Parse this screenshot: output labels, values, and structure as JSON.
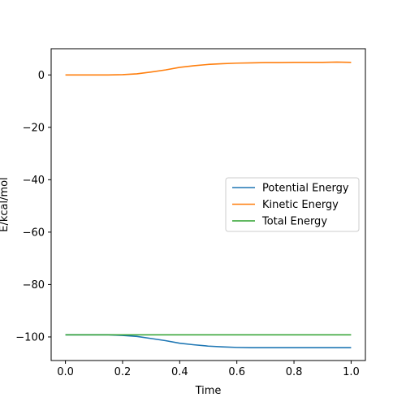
{
  "chart_data": {
    "type": "line",
    "title": "",
    "xlabel": "Time",
    "ylabel": "E/kcal/mol",
    "xlim": [
      -0.05,
      1.05
    ],
    "ylim": [
      -109,
      10
    ],
    "xticks": [
      0.0,
      0.2,
      0.4,
      0.6,
      0.8,
      1.0
    ],
    "xtick_labels": [
      "0.0",
      "0.2",
      "0.4",
      "0.6",
      "0.8",
      "1.0"
    ],
    "yticks": [
      0,
      -20,
      -40,
      -60,
      -80,
      -100
    ],
    "ytick_labels": [
      "0",
      "−20",
      "−40",
      "−60",
      "−80",
      "−100"
    ],
    "grid": false,
    "legend_position": "center-right",
    "series": [
      {
        "name": "Potential Energy",
        "color": "#1f77b4",
        "x": [
          0.0,
          0.05,
          0.1,
          0.15,
          0.2,
          0.25,
          0.3,
          0.35,
          0.4,
          0.45,
          0.5,
          0.55,
          0.6,
          0.65,
          0.7,
          0.75,
          0.8,
          0.85,
          0.9,
          0.95,
          1.0
        ],
        "y": [
          -99.2,
          -99.2,
          -99.2,
          -99.2,
          -99.4,
          -99.8,
          -100.6,
          -101.4,
          -102.4,
          -103.0,
          -103.5,
          -103.8,
          -104.0,
          -104.1,
          -104.1,
          -104.1,
          -104.1,
          -104.1,
          -104.1,
          -104.1,
          -104.1
        ]
      },
      {
        "name": "Kinetic Energy",
        "color": "#ff7f0e",
        "x": [
          0.0,
          0.05,
          0.1,
          0.15,
          0.2,
          0.25,
          0.3,
          0.35,
          0.4,
          0.45,
          0.5,
          0.55,
          0.6,
          0.65,
          0.7,
          0.75,
          0.8,
          0.85,
          0.9,
          0.95,
          1.0
        ],
        "y": [
          0.0,
          0.0,
          0.0,
          0.0,
          0.1,
          0.4,
          1.1,
          1.9,
          2.9,
          3.5,
          4.0,
          4.3,
          4.5,
          4.6,
          4.7,
          4.7,
          4.8,
          4.8,
          4.8,
          4.9,
          4.8
        ]
      },
      {
        "name": "Total Energy",
        "color": "#2ca02c",
        "x": [
          0.0,
          0.05,
          0.1,
          0.15,
          0.2,
          0.25,
          0.3,
          0.35,
          0.4,
          0.45,
          0.5,
          0.55,
          0.6,
          0.65,
          0.7,
          0.75,
          0.8,
          0.85,
          0.9,
          0.95,
          1.0
        ],
        "y": [
          -99.2,
          -99.2,
          -99.2,
          -99.2,
          -99.2,
          -99.2,
          -99.2,
          -99.2,
          -99.2,
          -99.2,
          -99.2,
          -99.2,
          -99.2,
          -99.2,
          -99.2,
          -99.2,
          -99.2,
          -99.2,
          -99.2,
          -99.2,
          -99.2
        ]
      }
    ]
  }
}
